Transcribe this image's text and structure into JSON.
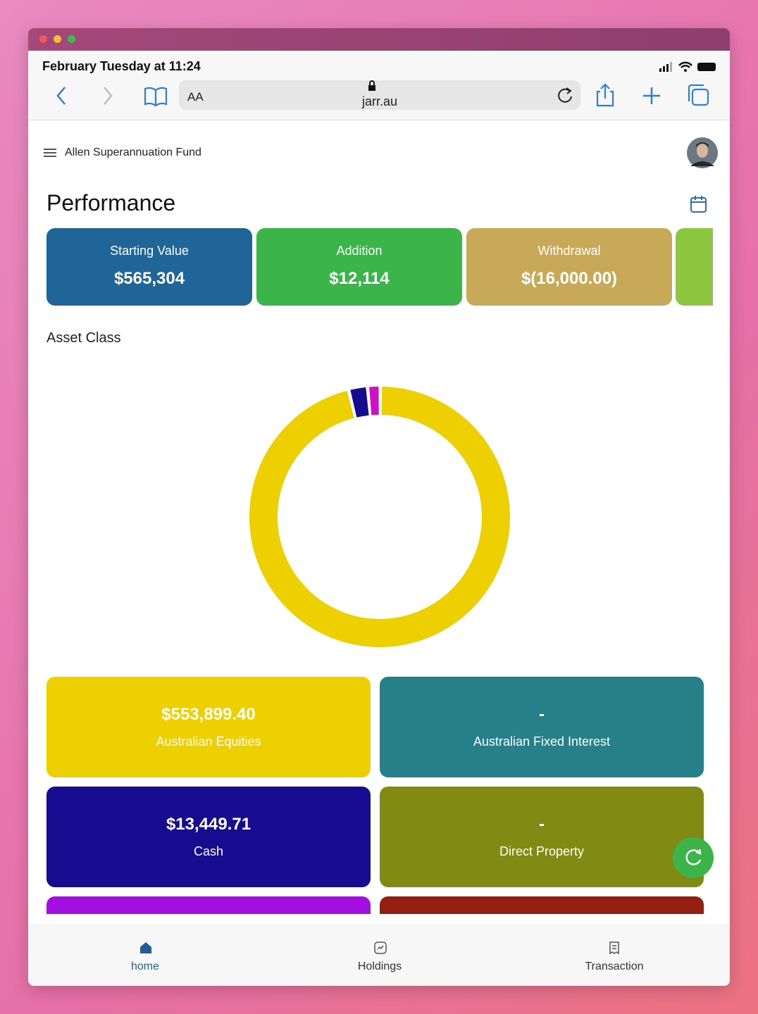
{
  "browser": {
    "status_time": "February Tuesday at 11:24",
    "text_size": "AA",
    "url": "jarr.au"
  },
  "header": {
    "title": "Allen Superannuation Fund"
  },
  "performance": {
    "title": "Performance",
    "cards": [
      {
        "label": "Starting Value",
        "value": "$565,304"
      },
      {
        "label": "Addition",
        "value": "$12,114"
      },
      {
        "label": "Withdrawal",
        "value": "$(16,000.00)"
      }
    ]
  },
  "asset_section": {
    "title": "Asset Class"
  },
  "chart_data": {
    "type": "donut",
    "categories": [
      "Australian Equities",
      "Cash",
      null
    ],
    "values": [
      553899.4,
      13449.71,
      9000
    ],
    "colors": [
      "#eecf00",
      "#150c8f",
      "#d10fc8"
    ]
  },
  "tiles": [
    {
      "value": "$553,899.40",
      "label": "Australian Equities"
    },
    {
      "value": "-",
      "label": "Australian Fixed Interest"
    },
    {
      "value": "$13,449.71",
      "label": "Cash"
    },
    {
      "value": "-",
      "label": "Direct Property"
    }
  ],
  "nav": [
    "home",
    "Holdings",
    "Transaction"
  ]
}
